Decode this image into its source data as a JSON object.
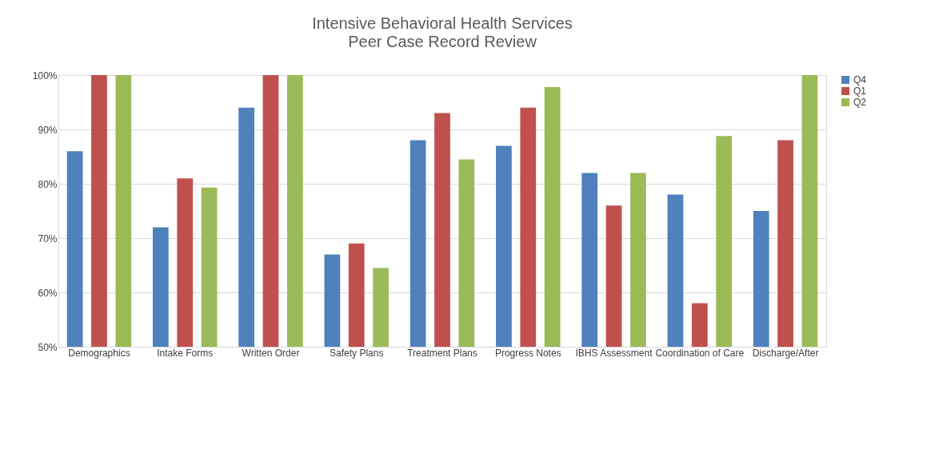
{
  "chart_data": {
    "type": "bar",
    "title": "Intensive Behavioral Health Services",
    "subtitle": "Peer Case Record Review",
    "categories": [
      "Demographics",
      "Intake Forms",
      "Written Order",
      "Safety Plans",
      "Treatment Plans",
      "Progress Notes",
      "IBHS Assessment",
      "Coordination of Care",
      "Discharge/After"
    ],
    "series": [
      {
        "name": "Q4",
        "color": "#4f81bd",
        "values": [
          86,
          72,
          94,
          67,
          88,
          87,
          82,
          78,
          75
        ]
      },
      {
        "name": "Q1",
        "color": "#c0504d",
        "values": [
          100,
          81,
          100,
          69,
          93,
          94,
          76,
          58,
          88
        ]
      },
      {
        "name": "Q2",
        "color": "#9bbb59",
        "values": [
          100,
          79.3,
          100,
          64.5,
          84.5,
          97.8,
          82,
          88.8,
          100
        ]
      }
    ],
    "ylim": [
      50,
      100
    ],
    "yticks": [
      {
        "value": 50,
        "label": "50%"
      },
      {
        "value": 60,
        "label": "60%"
      },
      {
        "value": 70,
        "label": "70%"
      },
      {
        "value": 80,
        "label": "80%"
      },
      {
        "value": 90,
        "label": "90%"
      },
      {
        "value": 100,
        "label": "100%"
      }
    ],
    "grid": "y",
    "legend": "right"
  }
}
